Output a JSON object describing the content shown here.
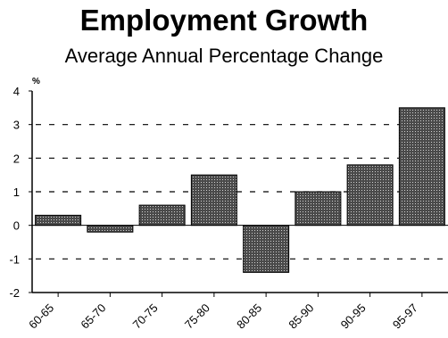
{
  "chart_data": {
    "type": "bar",
    "title": "Employment Growth",
    "subtitle": "Average Annual Percentage Change",
    "ylabel": "%",
    "xlabel": "",
    "categories": [
      "60-65",
      "65-70",
      "70-75",
      "75-80",
      "80-85",
      "85-90",
      "90-95",
      "95-97"
    ],
    "values": [
      0.3,
      -0.2,
      0.6,
      1.5,
      -1.4,
      1.0,
      1.8,
      3.5
    ],
    "ylim": [
      -2,
      4
    ],
    "yticks": [
      "4",
      "3",
      "2",
      "1",
      "0",
      "-1",
      "-2"
    ],
    "grid": "dashed horizontal",
    "colors": {
      "bar_fill": "#555555",
      "bar_dot": "#d0d0d0",
      "axis": "#000000"
    }
  }
}
